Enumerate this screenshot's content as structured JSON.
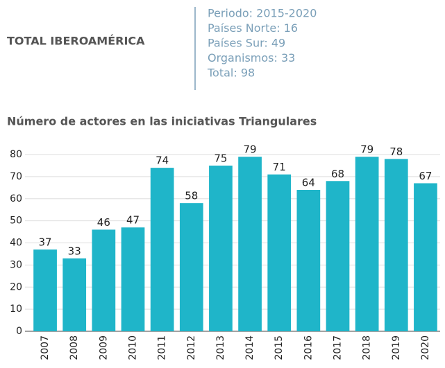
{
  "header": {
    "title": "TOTAL IBEROAMÉRICA",
    "lines": [
      "Periodo: 2015-2020",
      "Países Norte: 16",
      "Países Sur: 49",
      "Organismos: 33",
      "Total: 98"
    ]
  },
  "chart_data": {
    "type": "bar",
    "title": "Número de actores en las iniciativas Triangulares",
    "categories": [
      "2007",
      "2008",
      "2009",
      "2010",
      "2011",
      "2012",
      "2013",
      "2014",
      "2015",
      "2016",
      "2017",
      "2018",
      "2019",
      "2020"
    ],
    "values": [
      37,
      33,
      46,
      47,
      74,
      58,
      75,
      79,
      71,
      64,
      68,
      79,
      78,
      67
    ],
    "color": "#1fb5c9",
    "ylim": [
      0,
      80
    ],
    "yticks": [
      0,
      10,
      20,
      30,
      40,
      50,
      60,
      70,
      80
    ],
    "grid": true
  }
}
